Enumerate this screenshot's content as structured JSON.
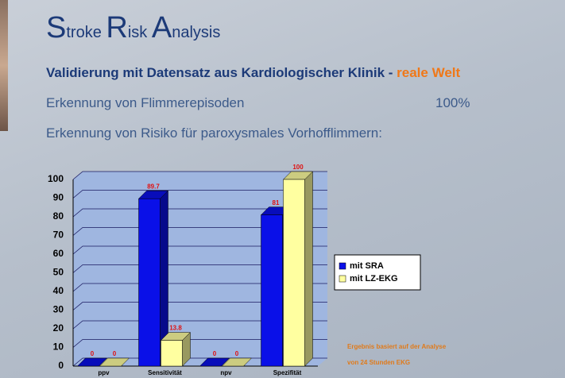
{
  "slide": {
    "title": "Stroke Risk Analysis",
    "subtitle": [
      "Validierung mit Datensatz aus Kardiologischer Klinik - ",
      "reale Welt"
    ],
    "line1": [
      "Erkennung von Flimmerepisoden",
      "100%"
    ],
    "line2": "Erkennung von Risiko für paroxysmales Vorhofflimmern:",
    "note": [
      "Ergebnis basiert auf der Analyse",
      "von 24 Stunden EKG"
    ]
  },
  "chart_data": {
    "type": "bar",
    "categories": [
      "ppv",
      "Sensitivität",
      "npv",
      "Spezifität"
    ],
    "series": [
      {
        "name": "mit SRA",
        "color": "#0a10e8",
        "values": [
          0,
          89.7,
          0,
          81
        ]
      },
      {
        "name": "mit LZ-EKG",
        "color": "#ffffa0",
        "values": [
          0,
          13.8,
          0,
          100
        ]
      }
    ],
    "ylim": [
      0,
      100
    ],
    "yticks": [
      0,
      10,
      20,
      30,
      40,
      50,
      60,
      70,
      80,
      90,
      100
    ],
    "grid": true,
    "legend": "right"
  }
}
